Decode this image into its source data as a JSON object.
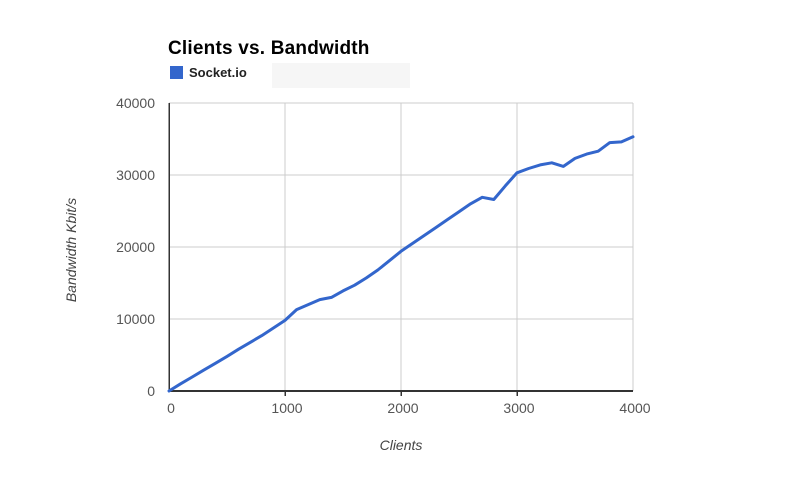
{
  "title": "Clients vs. Bandwidth",
  "legend": {
    "items": [
      {
        "label": "Socket.io",
        "color": "#3366cc"
      }
    ]
  },
  "chart_data": {
    "type": "line",
    "title": "Clients vs. Bandwidth",
    "xlabel": "Clients",
    "ylabel": "Bandwidth Kbit/s",
    "xlim": [
      0,
      4000
    ],
    "ylim": [
      0,
      40000
    ],
    "xticks": [
      0,
      1000,
      2000,
      3000,
      4000
    ],
    "yticks": [
      0,
      10000,
      20000,
      30000,
      40000
    ],
    "grid": true,
    "legend_position": "top-left",
    "series": [
      {
        "name": "Socket.io",
        "color": "#3366cc",
        "points": [
          [
            0,
            0
          ],
          [
            100,
            1000
          ],
          [
            200,
            1950
          ],
          [
            300,
            2900
          ],
          [
            400,
            3850
          ],
          [
            500,
            4800
          ],
          [
            600,
            5800
          ],
          [
            700,
            6750
          ],
          [
            800,
            7700
          ],
          [
            900,
            8750
          ],
          [
            1000,
            9800
          ],
          [
            1100,
            11300
          ],
          [
            1200,
            12000
          ],
          [
            1300,
            12700
          ],
          [
            1400,
            13000
          ],
          [
            1500,
            13900
          ],
          [
            1600,
            14700
          ],
          [
            1700,
            15700
          ],
          [
            1800,
            16800
          ],
          [
            1900,
            18100
          ],
          [
            2000,
            19400
          ],
          [
            2100,
            20500
          ],
          [
            2200,
            21600
          ],
          [
            2300,
            22700
          ],
          [
            2400,
            23800
          ],
          [
            2500,
            24900
          ],
          [
            2600,
            26000
          ],
          [
            2700,
            26900
          ],
          [
            2800,
            26600
          ],
          [
            2900,
            28500
          ],
          [
            3000,
            30300
          ],
          [
            3100,
            30900
          ],
          [
            3200,
            31400
          ],
          [
            3300,
            31700
          ],
          [
            3400,
            31200
          ],
          [
            3500,
            32300
          ],
          [
            3600,
            32900
          ],
          [
            3700,
            33300
          ],
          [
            3800,
            34500
          ],
          [
            3900,
            34600
          ],
          [
            4000,
            35300
          ]
        ]
      }
    ]
  },
  "colors": {
    "line": "#3366cc",
    "grid": "#cccccc",
    "axis": "#333333",
    "tick_label": "#555555",
    "title": "#000000",
    "axis_title": "#444444",
    "background": "#ffffff",
    "legend_artifact": "#f6f6f6"
  }
}
